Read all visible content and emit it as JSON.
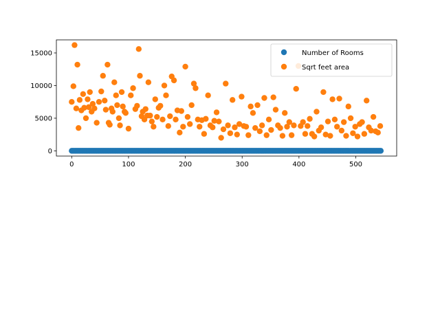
{
  "chart_data": {
    "type": "scatter",
    "title": "",
    "xlabel": "",
    "ylabel": "",
    "xlim": [
      -27,
      572
    ],
    "ylim": [
      -800,
      17000
    ],
    "xticks": [
      0,
      100,
      200,
      300,
      400,
      500
    ],
    "yticks": [
      0,
      5000,
      10000,
      15000
    ],
    "grid": false,
    "legend_position": "top-right",
    "colors": {
      "rooms": "#1f77b4",
      "area": "#ff7f0e"
    },
    "series": [
      {
        "name": "Number of Rooms",
        "x_range": [
          0,
          544
        ],
        "y_value": 3
      },
      {
        "name": "Sqrt feet area",
        "x": [
          0,
          3,
          5,
          8,
          10,
          12,
          14,
          17,
          20,
          22,
          25,
          28,
          30,
          32,
          35,
          37,
          40,
          44,
          48,
          52,
          55,
          58,
          60,
          63,
          65,
          67,
          70,
          72,
          75,
          78,
          80,
          83,
          85,
          88,
          90,
          93,
          95,
          100,
          104,
          108,
          112,
          115,
          118,
          120,
          123,
          125,
          128,
          130,
          133,
          135,
          138,
          141,
          144,
          147,
          150,
          153,
          156,
          160,
          163,
          166,
          170,
          173,
          176,
          180,
          183,
          186,
          190,
          193,
          196,
          200,
          204,
          208,
          211,
          215,
          218,
          222,
          225,
          229,
          233,
          236,
          240,
          244,
          248,
          251,
          255,
          259,
          263,
          267,
          271,
          275,
          279,
          283,
          287,
          291,
          295,
          299,
          303,
          307,
          311,
          315,
          319,
          323,
          327,
          331,
          335,
          339,
          343,
          347,
          351,
          355,
          359,
          363,
          367,
          371,
          375,
          379,
          383,
          387,
          391,
          395,
          399,
          403,
          407,
          411,
          415,
          419,
          423,
          427,
          431,
          435,
          439,
          443,
          447,
          451,
          455,
          459,
          463,
          467,
          471,
          475,
          479,
          483,
          487,
          491,
          495,
          499,
          503,
          507,
          511,
          515,
          519,
          523,
          527,
          531,
          535,
          539,
          543
        ],
        "y": [
          7500,
          9900,
          16200,
          6500,
          13200,
          3500,
          7800,
          6200,
          8700,
          6600,
          5000,
          7900,
          6700,
          9000,
          6000,
          7200,
          6500,
          4300,
          7500,
          9100,
          11500,
          7700,
          6300,
          13200,
          4300,
          4000,
          6500,
          6000,
          10500,
          8500,
          7000,
          5000,
          3900,
          9000,
          6800,
          6000,
          5800,
          3400,
          8500,
          9600,
          6400,
          6900,
          15600,
          11500,
          5300,
          6000,
          4800,
          6400,
          5400,
          10500,
          5400,
          4500,
          3700,
          7900,
          5200,
          6600,
          6900,
          4800,
          10000,
          8500,
          3800,
          5300,
          11400,
          10800,
          4800,
          6200,
          2800,
          6100,
          3700,
          12900,
          5200,
          4100,
          7000,
          10300,
          9600,
          4800,
          3700,
          4700,
          2600,
          4900,
          8500,
          3900,
          3600,
          4600,
          5900,
          4500,
          2000,
          3300,
          10300,
          3900,
          2700,
          7800,
          3600,
          2500,
          4100,
          8300,
          3800,
          3700,
          2400,
          6800,
          5800,
          3500,
          7000,
          3000,
          3900,
          8100,
          2400,
          4800,
          3200,
          8200,
          6300,
          3900,
          3500,
          2300,
          5800,
          3700,
          4400,
          2400,
          3900,
          9500,
          13000,
          3800,
          4400,
          2600,
          3800,
          4900,
          2600,
          2200,
          6000,
          3100,
          3600,
          9000,
          2500,
          4500,
          2300,
          7900,
          4800,
          3700,
          8000,
          3100,
          4400,
          2300,
          6800,
          5000,
          2700,
          3700,
          2200,
          4100,
          4400,
          2600,
          7700,
          3600,
          3100,
          5200,
          3000,
          2800,
          3800
        ]
      }
    ]
  }
}
